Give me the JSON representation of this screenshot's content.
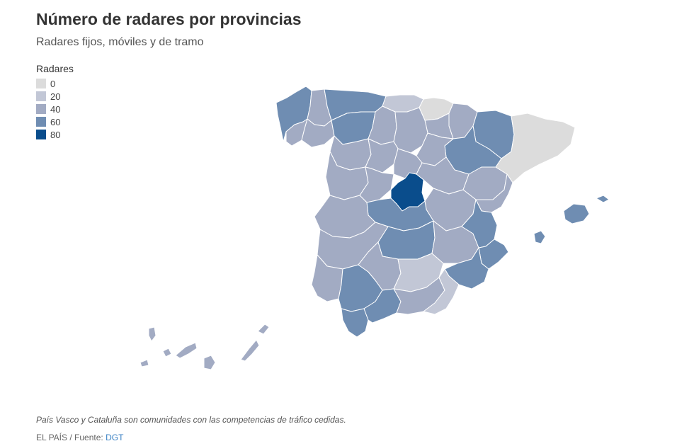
{
  "header": {
    "title": "Número de radares por provincias",
    "subtitle": "Radares fijos, móviles y de tramo"
  },
  "legend": {
    "title": "Radares",
    "items": [
      {
        "label": "0",
        "color": "#dcdcdc"
      },
      {
        "label": "20",
        "color": "#c2c7d6"
      },
      {
        "label": "40",
        "color": "#a2abc3"
      },
      {
        "label": "60",
        "color": "#6f8db2"
      },
      {
        "label": "80",
        "color": "#0a4d8c"
      }
    ]
  },
  "map": {
    "provinces": [
      {
        "id": "a-coruna",
        "level": 3
      },
      {
        "id": "lugo",
        "level": 2
      },
      {
        "id": "pontevedra",
        "level": 2
      },
      {
        "id": "ourense",
        "level": 2
      },
      {
        "id": "asturias",
        "level": 3
      },
      {
        "id": "cantabria",
        "level": 1
      },
      {
        "id": "pais-vasco",
        "level": 0
      },
      {
        "id": "navarra",
        "level": 2
      },
      {
        "id": "la-rioja",
        "level": 2
      },
      {
        "id": "huesca",
        "level": 3
      },
      {
        "id": "zaragoza",
        "level": 3
      },
      {
        "id": "teruel",
        "level": 2
      },
      {
        "id": "catalunya",
        "level": 0
      },
      {
        "id": "leon",
        "level": 3
      },
      {
        "id": "palencia",
        "level": 2
      },
      {
        "id": "burgos",
        "level": 2
      },
      {
        "id": "soria",
        "level": 2
      },
      {
        "id": "zamora",
        "level": 2
      },
      {
        "id": "valladolid",
        "level": 2
      },
      {
        "id": "segovia",
        "level": 2
      },
      {
        "id": "salamanca",
        "level": 2
      },
      {
        "id": "avila",
        "level": 2
      },
      {
        "id": "guadalajara",
        "level": 2
      },
      {
        "id": "cuenca",
        "level": 2
      },
      {
        "id": "madrid",
        "level": 4
      },
      {
        "id": "toledo",
        "level": 3
      },
      {
        "id": "caceres",
        "level": 2
      },
      {
        "id": "badajoz",
        "level": 2
      },
      {
        "id": "ciudad-real",
        "level": 3
      },
      {
        "id": "albacete",
        "level": 2
      },
      {
        "id": "castellon",
        "level": 2
      },
      {
        "id": "valencia",
        "level": 3
      },
      {
        "id": "alicante",
        "level": 3
      },
      {
        "id": "murcia",
        "level": 3
      },
      {
        "id": "huelva",
        "level": 2
      },
      {
        "id": "sevilla",
        "level": 3
      },
      {
        "id": "cordoba",
        "level": 2
      },
      {
        "id": "jaen",
        "level": 1
      },
      {
        "id": "cadiz",
        "level": 3
      },
      {
        "id": "malaga",
        "level": 3
      },
      {
        "id": "granada",
        "level": 2
      },
      {
        "id": "almeria",
        "level": 1
      },
      {
        "id": "mallorca",
        "level": 3
      },
      {
        "id": "menorca",
        "level": 3
      },
      {
        "id": "ibiza",
        "level": 3
      },
      {
        "id": "la-palma",
        "level": 2
      },
      {
        "id": "tenerife",
        "level": 2
      },
      {
        "id": "la-gomera",
        "level": 2
      },
      {
        "id": "el-hierro",
        "level": 2
      },
      {
        "id": "gran-canaria",
        "level": 2
      },
      {
        "id": "fuerteventura",
        "level": 2
      },
      {
        "id": "lanzarote",
        "level": 2
      }
    ]
  },
  "footer": {
    "note": "País Vasco y Cataluña son comunidades con las competencias de tráfico cedidas.",
    "credit_prefix": "EL PAÍS / Fuente: ",
    "credit_source": "DGT"
  }
}
